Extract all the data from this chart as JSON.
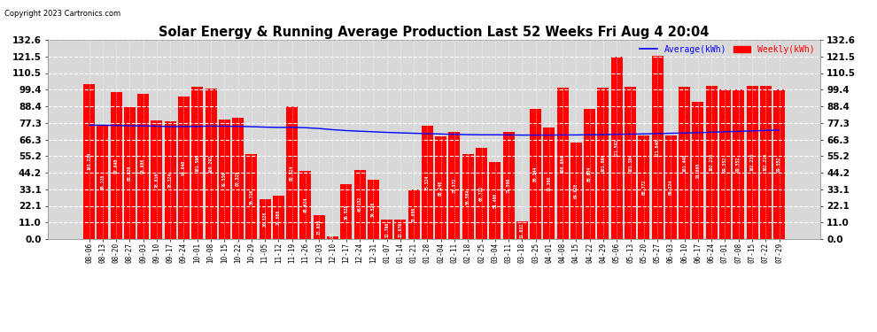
{
  "title": "Solar Energy & Running Average Production Last 52 Weeks Fri Aug 4 20:04",
  "copyright": "Copyright 2023 Cartronics.com",
  "legend_avg": "Average(kWh)",
  "legend_weekly": "Weekly(kWh)",
  "bar_color": "#ff0000",
  "avg_line_color": "#0000ff",
  "background_color": "#ffffff",
  "plot_bg_color": "#d8d8d8",
  "grid_color": "#ffffff",
  "yticks": [
    0.0,
    11.0,
    22.1,
    33.1,
    44.2,
    55.2,
    66.3,
    77.3,
    88.4,
    99.4,
    110.5,
    121.5,
    132.6
  ],
  "categories": [
    "08-06",
    "08-13",
    "08-20",
    "08-27",
    "09-03",
    "09-10",
    "09-17",
    "09-24",
    "10-01",
    "10-08",
    "10-15",
    "10-22",
    "10-29",
    "11-05",
    "11-12",
    "11-19",
    "11-26",
    "12-03",
    "12-10",
    "12-17",
    "12-24",
    "12-31",
    "01-07",
    "01-14",
    "01-21",
    "01-28",
    "02-04",
    "02-11",
    "02-18",
    "02-25",
    "03-04",
    "03-11",
    "03-18",
    "03-25",
    "04-01",
    "04-08",
    "04-15",
    "04-22",
    "04-29",
    "05-06",
    "05-13",
    "05-20",
    "05-27",
    "06-03",
    "06-10",
    "06-17",
    "06-24",
    "07-01",
    "07-08",
    "07-15",
    "07-22",
    "07-29"
  ],
  "weekly_values": [
    103.224,
    76.128,
    97.64,
    88.02,
    96.908,
    78.816,
    78.324,
    94.64,
    101.596,
    100.292,
    79.536,
    80.528,
    56.716,
    26.328,
    29.088,
    88.524,
    45.624,
    15.936,
    1.928,
    36.528,
    46.152,
    39.528,
    12.796,
    12.976,
    33.008,
    75.324,
    68.248,
    71.372,
    56.584,
    60.712,
    51.4,
    71.5,
    11.632,
    86.344,
    74.368,
    100.664,
    64.028,
    86.634,
    101.064,
    121.592,
    101.384,
    68.772,
    121.84,
    69.224,
    101.448,
    91.6,
    102.216,
    99.552,
    99.552,
    102.216,
    102.216,
    99.552
  ],
  "avg_values": [
    75.8,
    75.8,
    75.6,
    75.4,
    75.3,
    75.1,
    74.9,
    74.9,
    75.0,
    75.2,
    75.1,
    75.0,
    74.8,
    74.5,
    74.3,
    74.4,
    74.1,
    73.6,
    72.8,
    72.2,
    71.8,
    71.4,
    71.0,
    70.7,
    70.4,
    70.2,
    69.9,
    69.7,
    69.5,
    69.4,
    69.4,
    69.3,
    69.2,
    69.2,
    69.2,
    69.3,
    69.3,
    69.4,
    69.5,
    69.7,
    69.8,
    70.0,
    70.2,
    70.4,
    70.6,
    70.8,
    71.1,
    71.4,
    71.7,
    72.0,
    72.3,
    72.5
  ],
  "ylim_max": 132.6,
  "figsize": [
    9.9,
    3.75
  ],
  "dpi": 100
}
